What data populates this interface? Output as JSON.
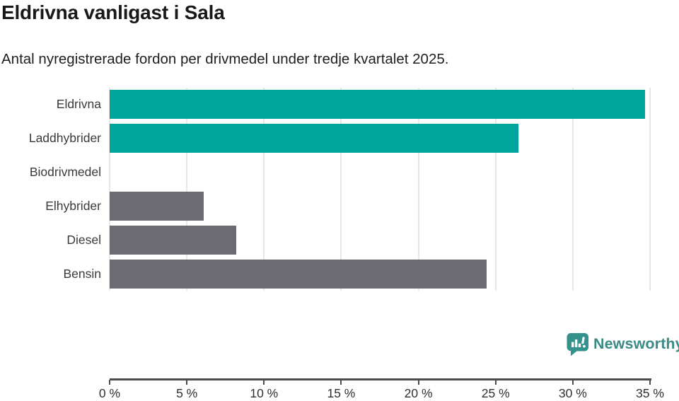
{
  "header": {
    "title": "Eldrivna vanligast i Sala",
    "subtitle": "Antal nyregistrerade fordon per drivmedel under tredje kvartalet 2025."
  },
  "chart_data": {
    "type": "bar",
    "orientation": "horizontal",
    "title": "Eldrivna vanligast i Sala",
    "subtitle": "Antal nyregistrerade fordon per drivmedel under tredje kvartalet 2025.",
    "categories": [
      "Eldrivna",
      "Laddhybrider",
      "Biodrivmedel",
      "Elhybrider",
      "Diesel",
      "Bensin"
    ],
    "values": [
      34.7,
      26.5,
      0,
      6.1,
      8.2,
      24.4
    ],
    "unit": "%",
    "xlabel": "",
    "ylabel": "",
    "xlim": [
      0,
      35
    ],
    "x_tick_values": [
      0,
      5,
      10,
      15,
      20,
      25,
      30,
      35
    ],
    "x_tick_labels": [
      "0 %",
      "5 %",
      "10 %",
      "15 %",
      "20 %",
      "25 %",
      "30 %",
      "35 %"
    ],
    "grid": "vertical-on",
    "legend": "none",
    "bar_colors": [
      "#00a69b",
      "#00a69b",
      "#6c6b72",
      "#6c6b72",
      "#6c6b72",
      "#6c6b72"
    ]
  },
  "colors": {
    "accent_teal": "#00a69b",
    "neutral_gray": "#6c6b72",
    "gridline": "#e7e7e7",
    "axis": "#4c4c4c",
    "brand_teal": "#37918b"
  },
  "footer": {
    "brand": "Newsworthy",
    "logo_icon": "bar-chart-speech-bubble-icon"
  }
}
